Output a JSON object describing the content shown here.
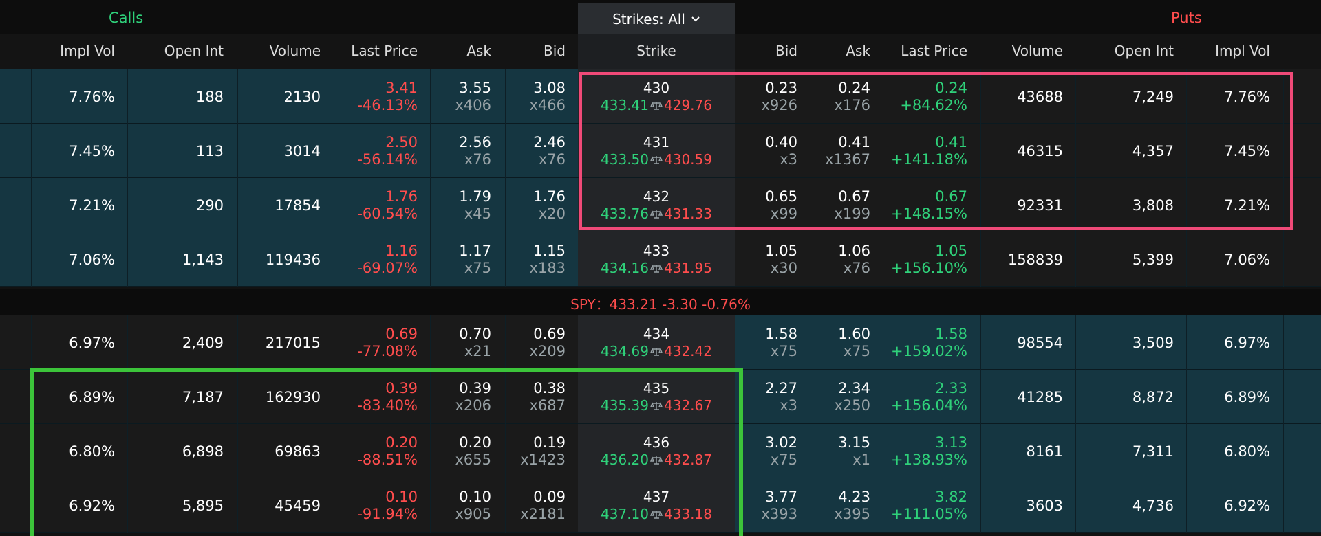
{
  "header": {
    "calls_title": "Calls",
    "puts_title": "Puts",
    "strikes_label": "Strikes: All"
  },
  "columns": {
    "calls": [
      "Impl Vol",
      "Open Int",
      "Volume",
      "Last Price",
      "Ask",
      "Bid"
    ],
    "strike": "Strike",
    "puts": [
      "Bid",
      "Ask",
      "Last Price",
      "Volume",
      "Open Int",
      "Impl Vol"
    ]
  },
  "underlying": {
    "text": "SPY：433.21 -3.30 -0.76%"
  },
  "rows": [
    {
      "strike": "430",
      "be_call": "433.41",
      "be_put": "429.76",
      "c_iv": "7.76%",
      "c_oi": "188",
      "c_vol": "2130",
      "c_last": "3.41",
      "c_chg": "-46.13%",
      "c_ask": "3.55",
      "c_asksz": "x406",
      "c_bid": "3.08",
      "c_bidsz": "x466",
      "p_bid": "0.23",
      "p_bidsz": "x926",
      "p_ask": "0.24",
      "p_asksz": "x176",
      "p_last": "0.24",
      "p_chg": "+84.62%",
      "p_vol": "43688",
      "p_oi": "7,249",
      "p_iv": "7.76%"
    },
    {
      "strike": "431",
      "be_call": "433.50",
      "be_put": "430.59",
      "c_iv": "7.45%",
      "c_oi": "113",
      "c_vol": "3014",
      "c_last": "2.50",
      "c_chg": "-56.14%",
      "c_ask": "2.56",
      "c_asksz": "x76",
      "c_bid": "2.46",
      "c_bidsz": "x76",
      "p_bid": "0.40",
      "p_bidsz": "x3",
      "p_ask": "0.41",
      "p_asksz": "x1367",
      "p_last": "0.41",
      "p_chg": "+141.18%",
      "p_vol": "46315",
      "p_oi": "4,357",
      "p_iv": "7.45%"
    },
    {
      "strike": "432",
      "be_call": "433.76",
      "be_put": "431.33",
      "c_iv": "7.21%",
      "c_oi": "290",
      "c_vol": "17854",
      "c_last": "1.76",
      "c_chg": "-60.54%",
      "c_ask": "1.79",
      "c_asksz": "x45",
      "c_bid": "1.76",
      "c_bidsz": "x20",
      "p_bid": "0.65",
      "p_bidsz": "x99",
      "p_ask": "0.67",
      "p_asksz": "x199",
      "p_last": "0.67",
      "p_chg": "+148.15%",
      "p_vol": "92331",
      "p_oi": "3,808",
      "p_iv": "7.21%"
    },
    {
      "strike": "433",
      "be_call": "434.16",
      "be_put": "431.95",
      "c_iv": "7.06%",
      "c_oi": "1,143",
      "c_vol": "119436",
      "c_last": "1.16",
      "c_chg": "-69.07%",
      "c_ask": "1.17",
      "c_asksz": "x75",
      "c_bid": "1.15",
      "c_bidsz": "x183",
      "p_bid": "1.05",
      "p_bidsz": "x30",
      "p_ask": "1.06",
      "p_asksz": "x76",
      "p_last": "1.05",
      "p_chg": "+156.10%",
      "p_vol": "158839",
      "p_oi": "5,399",
      "p_iv": "7.06%"
    },
    {
      "strike": "434",
      "be_call": "434.69",
      "be_put": "432.42",
      "c_iv": "6.97%",
      "c_oi": "2,409",
      "c_vol": "217015",
      "c_last": "0.69",
      "c_chg": "-77.08%",
      "c_ask": "0.70",
      "c_asksz": "x21",
      "c_bid": "0.69",
      "c_bidsz": "x209",
      "p_bid": "1.58",
      "p_bidsz": "x75",
      "p_ask": "1.60",
      "p_asksz": "x75",
      "p_last": "1.58",
      "p_chg": "+159.02%",
      "p_vol": "98554",
      "p_oi": "3,509",
      "p_iv": "6.97%"
    },
    {
      "strike": "435",
      "be_call": "435.39",
      "be_put": "432.67",
      "c_iv": "6.89%",
      "c_oi": "7,187",
      "c_vol": "162930",
      "c_last": "0.39",
      "c_chg": "-83.40%",
      "c_ask": "0.39",
      "c_asksz": "x206",
      "c_bid": "0.38",
      "c_bidsz": "x687",
      "p_bid": "2.27",
      "p_bidsz": "x3",
      "p_ask": "2.34",
      "p_asksz": "x250",
      "p_last": "2.33",
      "p_chg": "+156.04%",
      "p_vol": "41285",
      "p_oi": "8,872",
      "p_iv": "6.89%"
    },
    {
      "strike": "436",
      "be_call": "436.20",
      "be_put": "432.87",
      "c_iv": "6.80%",
      "c_oi": "6,898",
      "c_vol": "69863",
      "c_last": "0.20",
      "c_chg": "-88.51%",
      "c_ask": "0.20",
      "c_asksz": "x655",
      "c_bid": "0.19",
      "c_bidsz": "x1423",
      "p_bid": "3.02",
      "p_bidsz": "x75",
      "p_ask": "3.15",
      "p_asksz": "x1",
      "p_last": "3.13",
      "p_chg": "+138.93%",
      "p_vol": "8161",
      "p_oi": "7,311",
      "p_iv": "6.80%"
    },
    {
      "strike": "437",
      "be_call": "437.10",
      "be_put": "433.18",
      "c_iv": "6.92%",
      "c_oi": "5,895",
      "c_vol": "45459",
      "c_last": "0.10",
      "c_chg": "-91.94%",
      "c_ask": "0.10",
      "c_asksz": "x905",
      "c_bid": "0.09",
      "c_bidsz": "x2181",
      "p_bid": "3.77",
      "p_bidsz": "x393",
      "p_ask": "4.23",
      "p_asksz": "x395",
      "p_last": "3.82",
      "p_chg": "+111.05%",
      "p_vol": "3603",
      "p_oi": "4,736",
      "p_iv": "6.92%"
    }
  ],
  "colors": {
    "itm_background": "#153641",
    "otm_background": "#1a1a1a",
    "negative": "#ff4d4d",
    "positive": "#2fd17a",
    "highlight_puts": "#f04a78",
    "highlight_calls": "#3cc43a"
  },
  "icons": {
    "strikes_dropdown": "chevron-down-icon",
    "breakeven": "scale-icon"
  }
}
